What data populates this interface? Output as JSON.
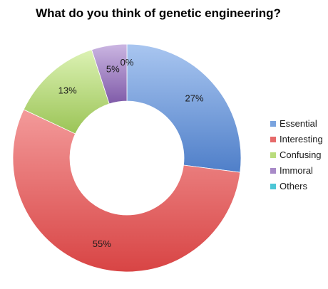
{
  "chart_data": {
    "type": "pie",
    "variant": "doughnut",
    "title": "What do you think of genetic engineering?",
    "categories": [
      "Essential",
      "Interesting",
      "Confusing",
      "Immoral",
      "Others"
    ],
    "values": [
      27,
      55,
      13,
      5,
      0
    ],
    "value_labels": [
      "27%",
      "55%",
      "13%",
      "5%",
      "0%"
    ],
    "colors": [
      "#7aa4df",
      "#e66a6a",
      "#b9dc7c",
      "#a88ac8",
      "#4cc6d6"
    ],
    "legend_position": "right"
  }
}
